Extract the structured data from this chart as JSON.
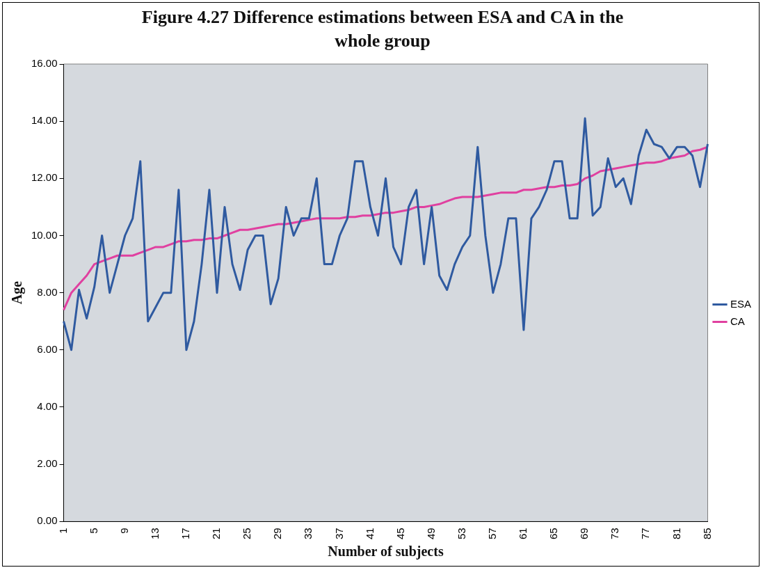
{
  "chart_data": {
    "type": "line",
    "title": "Figure 4.27   Difference estimations between ESA and CA in the whole group",
    "xlabel": "Number of subjects",
    "ylabel": "Age",
    "categories": [
      "1",
      null,
      null,
      null,
      "5",
      null,
      null,
      null,
      "9",
      null,
      null,
      null,
      "13",
      null,
      null,
      null,
      "17",
      null,
      null,
      null,
      "21",
      null,
      null,
      null,
      "25",
      null,
      null,
      null,
      "29",
      null,
      null,
      null,
      "33",
      null,
      null,
      null,
      "37",
      null,
      null,
      null,
      "41",
      null,
      null,
      null,
      "45",
      null,
      null,
      null,
      "49",
      null,
      null,
      null,
      "53",
      null,
      null,
      null,
      "57",
      null,
      null,
      null,
      "61",
      null,
      null,
      null,
      "65",
      null,
      null,
      null,
      "69",
      null,
      null,
      null,
      "73",
      null,
      null,
      null,
      "77",
      null,
      null,
      null,
      "81",
      null,
      null,
      null,
      "85"
    ],
    "series": [
      {
        "name": "ESA",
        "color": "#2f5aa0",
        "values": [
          7.0,
          6.0,
          8.1,
          7.1,
          8.2,
          10.0,
          8.0,
          9.0,
          10.0,
          10.6,
          12.6,
          7.0,
          7.5,
          8.0,
          8.0,
          11.6,
          6.0,
          7.0,
          9.0,
          11.6,
          8.0,
          11.0,
          9.0,
          8.1,
          9.5,
          10.0,
          10.0,
          7.6,
          8.5,
          11.0,
          10.0,
          10.6,
          10.6,
          12.0,
          9.0,
          9.0,
          10.0,
          10.6,
          12.6,
          12.6,
          11.0,
          10.0,
          12.0,
          9.6,
          9.0,
          11.0,
          11.6,
          9.0,
          11.0,
          8.6,
          8.1,
          9.0,
          9.6,
          10.0,
          13.1,
          10.0,
          8.0,
          9.0,
          10.6,
          10.6,
          6.7,
          10.6,
          11.0,
          11.6,
          12.6,
          12.6,
          10.6,
          10.6,
          14.1,
          10.7,
          11.0,
          12.7,
          11.7,
          12.0,
          11.1,
          12.8,
          13.7,
          13.2,
          13.1,
          12.7,
          13.1,
          13.1,
          12.8,
          11.7,
          13.2
        ]
      },
      {
        "name": "CA",
        "color": "#e040a0",
        "values": [
          7.4,
          8.0,
          8.3,
          8.6,
          9.0,
          9.1,
          9.2,
          9.3,
          9.3,
          9.3,
          9.4,
          9.5,
          9.6,
          9.6,
          9.7,
          9.8,
          9.8,
          9.85,
          9.85,
          9.9,
          9.9,
          10.0,
          10.1,
          10.2,
          10.2,
          10.25,
          10.3,
          10.35,
          10.4,
          10.4,
          10.45,
          10.5,
          10.55,
          10.6,
          10.6,
          10.6,
          10.6,
          10.65,
          10.65,
          10.7,
          10.7,
          10.75,
          10.8,
          10.8,
          10.85,
          10.9,
          11.0,
          11.0,
          11.05,
          11.1,
          11.2,
          11.3,
          11.35,
          11.35,
          11.35,
          11.4,
          11.45,
          11.5,
          11.5,
          11.5,
          11.6,
          11.6,
          11.65,
          11.7,
          11.7,
          11.75,
          11.75,
          11.8,
          12.0,
          12.1,
          12.25,
          12.3,
          12.35,
          12.4,
          12.45,
          12.5,
          12.55,
          12.55,
          12.6,
          12.7,
          12.75,
          12.8,
          12.95,
          13.0,
          13.1
        ]
      }
    ],
    "ylim": [
      0,
      16
    ],
    "yticks": [
      {
        "value": 0,
        "label": "0.00"
      },
      {
        "value": 2,
        "label": "2.00"
      },
      {
        "value": 4,
        "label": "4.00"
      },
      {
        "value": 6,
        "label": "6.00"
      },
      {
        "value": 8,
        "label": "8.00"
      },
      {
        "value": 10,
        "label": "10.00"
      },
      {
        "value": 12,
        "label": "12.00"
      },
      {
        "value": 14,
        "label": "14.00"
      },
      {
        "value": 16,
        "label": "16.00"
      }
    ],
    "grid": false,
    "legend": "right",
    "marker": "none",
    "line_style": "solid"
  }
}
